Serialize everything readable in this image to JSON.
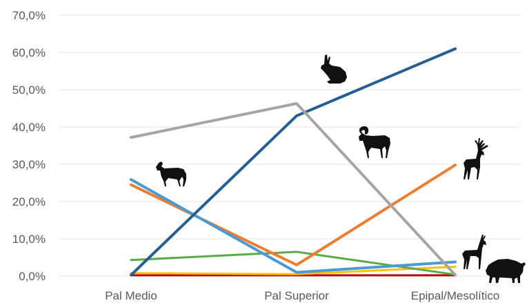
{
  "chart_data": {
    "type": "line",
    "title": "",
    "xlabel": "",
    "ylabel": "",
    "categories": [
      "Pal Medio",
      "Pal Superior",
      "Epipal/Mesolítico"
    ],
    "ylim": [
      0,
      70
    ],
    "y_ticks": [
      0,
      10,
      20,
      30,
      40,
      50,
      60,
      70
    ],
    "y_tick_labels": [
      "0,0%",
      "10,0%",
      "20,0%",
      "30,0%",
      "40,0%",
      "50,0%",
      "60,0%",
      "70,0%"
    ],
    "grid": true,
    "legend": "none",
    "series": [
      {
        "color": "#a5a5a5",
        "values": [
          37.2,
          46.3,
          0.3
        ]
      },
      {
        "color": "#255e91",
        "values": [
          0.3,
          43.0,
          61.0
        ]
      },
      {
        "color": "#4a9ad4",
        "values": [
          25.9,
          1.0,
          3.8
        ]
      },
      {
        "color": "#ed7d31",
        "values": [
          24.5,
          3.0,
          29.8
        ]
      },
      {
        "color": "#5aaa46",
        "values": [
          4.3,
          6.5,
          0.4
        ]
      },
      {
        "color": "#ffc000",
        "values": [
          0.8,
          0.5,
          2.5
        ]
      },
      {
        "color": "#c00000",
        "values": [
          0.2,
          0.2,
          0.2
        ]
      }
    ],
    "annotations": [
      {
        "icon": "horse-icon"
      },
      {
        "icon": "rabbit-icon"
      },
      {
        "icon": "ibex-icon"
      },
      {
        "icon": "red-deer-icon"
      },
      {
        "icon": "roe-deer-icon"
      },
      {
        "icon": "boar-icon"
      }
    ]
  }
}
